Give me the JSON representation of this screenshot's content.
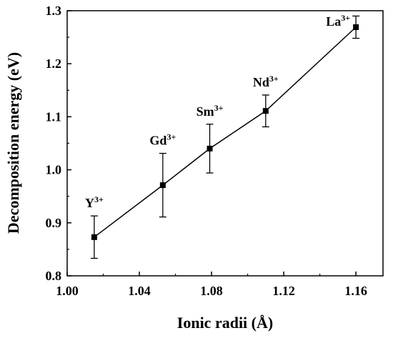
{
  "chart_data": {
    "type": "scatter",
    "title": "",
    "xlabel": "Ionic radii (Å)",
    "ylabel": "Decomposition energy (eV)",
    "xlim": [
      1.0,
      1.175
    ],
    "ylim": [
      0.8,
      1.3
    ],
    "xticks": [
      "1.00",
      "1.04",
      "1.08",
      "1.12",
      "1.16"
    ],
    "xtick_values": [
      1.0,
      1.04,
      1.08,
      1.12,
      1.16
    ],
    "yticks": [
      "0.8",
      "0.9",
      "1.0",
      "1.1",
      "1.2",
      "1.3"
    ],
    "ytick_values": [
      0.8,
      0.9,
      1.0,
      1.1,
      1.2,
      1.3
    ],
    "connected": true,
    "marker": "square",
    "color": "#000000",
    "grid": false,
    "series": [
      {
        "points": [
          {
            "label": "Y",
            "charge": "3+",
            "x": 1.015,
            "y": 0.873,
            "err": 0.04
          },
          {
            "label": "Gd",
            "charge": "3+",
            "x": 1.053,
            "y": 0.971,
            "err": 0.06
          },
          {
            "label": "Sm",
            "charge": "3+",
            "x": 1.079,
            "y": 1.04,
            "err": 0.046
          },
          {
            "label": "Nd",
            "charge": "3+",
            "x": 1.11,
            "y": 1.111,
            "err": 0.03
          },
          {
            "label": "La",
            "charge": "3+",
            "x": 1.16,
            "y": 1.269,
            "err": 0.021
          }
        ]
      }
    ]
  }
}
